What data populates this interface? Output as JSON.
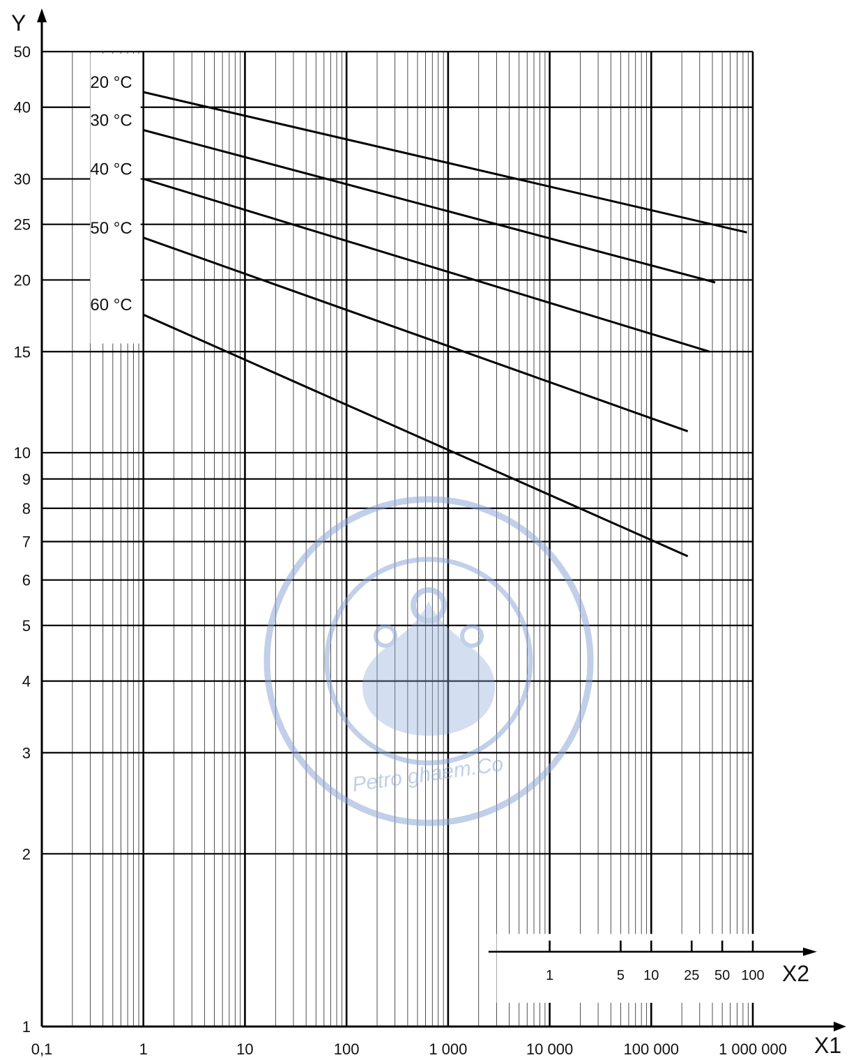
{
  "chart_data": {
    "type": "line",
    "scale": {
      "x": "log",
      "y": "log"
    },
    "grid": true,
    "xlabel": "X1",
    "ylabel": "Y",
    "xlim": [
      0.1,
      1000000
    ],
    "ylim": [
      1,
      50
    ],
    "x_ticks": [
      {
        "value": 0.1,
        "label": "0,1"
      },
      {
        "value": 1,
        "label": "1"
      },
      {
        "value": 10,
        "label": "10"
      },
      {
        "value": 100,
        "label": "100"
      },
      {
        "value": 1000,
        "label": "1 000"
      },
      {
        "value": 10000,
        "label": "10 000"
      },
      {
        "value": 100000,
        "label": "100 000"
      },
      {
        "value": 1000000,
        "label": "1 000 000"
      }
    ],
    "y_ticks": [
      {
        "value": 1,
        "label": "1"
      },
      {
        "value": 2,
        "label": "2"
      },
      {
        "value": 3,
        "label": "3"
      },
      {
        "value": 4,
        "label": "4"
      },
      {
        "value": 5,
        "label": "5"
      },
      {
        "value": 6,
        "label": "6"
      },
      {
        "value": 7,
        "label": "7"
      },
      {
        "value": 8,
        "label": "8"
      },
      {
        "value": 9,
        "label": "9"
      },
      {
        "value": 10,
        "label": "10"
      },
      {
        "value": 15,
        "label": "15"
      },
      {
        "value": 20,
        "label": "20"
      },
      {
        "value": 25,
        "label": "25"
      },
      {
        "value": 30,
        "label": "30"
      },
      {
        "value": 40,
        "label": "40"
      },
      {
        "value": 50,
        "label": "50"
      }
    ],
    "series": [
      {
        "name": "20 °C",
        "x": [
          1,
          876000
        ],
        "y": [
          42.5,
          24.2
        ]
      },
      {
        "name": "30 °C",
        "x": [
          1,
          426000
        ],
        "y": [
          36.5,
          19.8
        ]
      },
      {
        "name": "40 °C",
        "x": [
          1,
          376000
        ],
        "y": [
          30.0,
          15.0
        ]
      },
      {
        "name": "50 °C",
        "x": [
          1,
          229000
        ],
        "y": [
          23.7,
          10.9
        ]
      },
      {
        "name": "60 °C",
        "x": [
          1,
          229000
        ],
        "y": [
          17.4,
          6.6
        ]
      }
    ],
    "secondary_x_axis": {
      "label": "X2",
      "ticks": [
        {
          "value": 1,
          "label": "1"
        },
        {
          "value": 5,
          "label": "5"
        },
        {
          "value": 10,
          "label": "10"
        },
        {
          "value": 25,
          "label": "25"
        },
        {
          "value": 50,
          "label": "50"
        },
        {
          "value": 100,
          "label": "100"
        }
      ]
    }
  },
  "watermark": {
    "text": "Petro ghaem.Co",
    "color": "#8fa8d8"
  }
}
